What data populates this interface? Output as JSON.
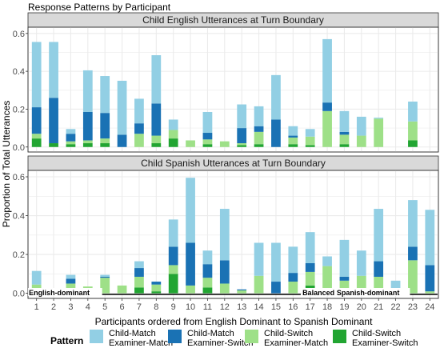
{
  "chart_data": {
    "type": "bar",
    "stacked": true,
    "title": "Response Patterns by Participant",
    "xlabel": "Participants ordered from English Dominant to Spanish Dominant",
    "ylabel": "Proportion of Total Utterances",
    "ylim": [
      0,
      0.6
    ],
    "yticks": [
      0.0,
      0.2,
      0.4,
      0.6
    ],
    "ytick_labels": [
      "0.0",
      "0.2",
      "0.4",
      "0.6"
    ],
    "grid": true,
    "categories": [
      "1",
      "2",
      "3",
      "4",
      "5",
      "6",
      "7",
      "8",
      "9",
      "10",
      "11",
      "12",
      "13",
      "14",
      "15",
      "16",
      "17",
      "18",
      "19",
      "20",
      "21",
      "22",
      "23",
      "24"
    ],
    "colors": {
      "child_match_examiner_match": "#92cfe4",
      "child_match_examiner_switch": "#1a72b4",
      "child_switch_examiner_match": "#9ee088",
      "child_switch_examiner_switch": "#22a532",
      "panel_strip": "#d9d9d9",
      "grid": "#ebebeb"
    },
    "legend": {
      "title": "Pattern",
      "position": "bottom",
      "items": [
        {
          "key": "child_match_examiner_match",
          "line1": "Child-Match",
          "line2": "Examiner-Match"
        },
        {
          "key": "child_match_examiner_switch",
          "line1": "Child-Match",
          "line2": "Examiner-Switch"
        },
        {
          "key": "child_switch_examiner_match",
          "line1": "Child-Switch",
          "line2": "Examiner-Match"
        },
        {
          "key": "child_switch_examiner_switch",
          "line1": "Child-Switch",
          "line2": "Examiner-Switch"
        }
      ]
    },
    "groups": [
      {
        "label": "English-dominant",
        "from": 1,
        "to": 16
      },
      {
        "label": "Balanced",
        "from": 17,
        "to": 18
      },
      {
        "label": "Spanish-dominant",
        "from": 19,
        "to": 24
      }
    ],
    "stack_order": [
      "child_switch_examiner_switch",
      "child_switch_examiner_match",
      "child_match_examiner_switch",
      "child_match_examiner_match"
    ],
    "panels": [
      {
        "title": "Child English Utterances at Turn Boundary",
        "series": [
          {
            "key": "child_switch_examiner_switch",
            "values": [
              0.045,
              0.02,
              0.015,
              0.02,
              0.02,
              0,
              0,
              0.02,
              0.045,
              0,
              0.015,
              0,
              0.01,
              0.015,
              0,
              0.015,
              0.01,
              0,
              0.015,
              0,
              0,
              0,
              0.035,
              0
            ]
          },
          {
            "key": "child_switch_examiner_match",
            "values": [
              0.025,
              0,
              0.015,
              0.015,
              0.025,
              0,
              0.07,
              0.04,
              0.045,
              0.035,
              0.025,
              0.03,
              0.01,
              0.065,
              0,
              0.035,
              0.045,
              0.19,
              0.05,
              0.06,
              0.15,
              0,
              0.1,
              0
            ]
          },
          {
            "key": "child_match_examiner_switch",
            "values": [
              0.14,
              0.24,
              0.04,
              0.15,
              0.135,
              0.065,
              0.055,
              0.17,
              0,
              0,
              0.035,
              0,
              0.08,
              0.03,
              0.145,
              0.01,
              0,
              0.045,
              0.015,
              0,
              0,
              0,
              0,
              0
            ]
          },
          {
            "key": "child_match_examiner_match",
            "values": [
              0.345,
              0.295,
              0.025,
              0.22,
              0.195,
              0.285,
              0.13,
              0.255,
              0.055,
              0,
              0.11,
              0,
              0.125,
              0.105,
              0.235,
              0.05,
              0.04,
              0.335,
              0.11,
              0.1,
              0.005,
              0,
              0.105,
              0
            ]
          }
        ]
      },
      {
        "title": "Child Spanish Utterances at Turn Boundary",
        "series": [
          {
            "key": "child_switch_examiner_switch",
            "values": [
              0,
              0,
              0,
              0,
              0,
              0,
              0.03,
              0.01,
              0.1,
              0,
              0.03,
              0,
              0,
              0,
              0,
              0,
              0.04,
              0,
              0.015,
              0,
              0,
              0,
              0,
              0
            ]
          },
          {
            "key": "child_switch_examiner_match",
            "values": [
              0.045,
              0.02,
              0.05,
              0.035,
              0.08,
              0.04,
              0.055,
              0.035,
              0.045,
              0.04,
              0.05,
              0.05,
              0.015,
              0.09,
              0,
              0.06,
              0.07,
              0.14,
              0.05,
              0.09,
              0.085,
              0,
              0.17,
              0.01
            ]
          },
          {
            "key": "child_match_examiner_switch",
            "values": [
              0,
              0,
              0.025,
              0,
              0.005,
              0,
              0.045,
              0.015,
              0.095,
              0.22,
              0.07,
              0.12,
              0.005,
              0,
              0.06,
              0.045,
              0.045,
              0,
              0.02,
              0,
              0.08,
              0,
              0.07,
              0.135
            ]
          },
          {
            "key": "child_match_examiner_match",
            "values": [
              0.07,
              0,
              0.02,
              0,
              0.01,
              0,
              0.035,
              0,
              0.14,
              0.335,
              0.07,
              0.265,
              0,
              0.17,
              0.2,
              0.135,
              0.16,
              0.05,
              0.19,
              0.13,
              0.27,
              0.065,
              0.24,
              0.285
            ]
          }
        ]
      }
    ]
  }
}
